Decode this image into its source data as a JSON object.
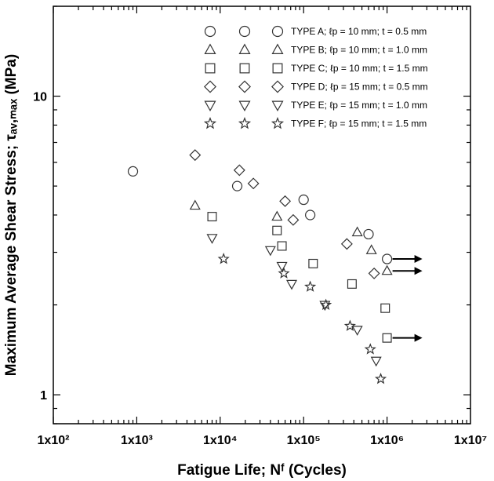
{
  "chart_data": {
    "type": "scatter",
    "x_scale": "log",
    "y_scale": "log",
    "xlim": [
      100,
      10000000
    ],
    "ylim": [
      0.8,
      20
    ],
    "x_ticks": [
      "1x10²",
      "1x10³",
      "1x10⁴",
      "1x10⁵",
      "1x10⁶",
      "1x10⁷"
    ],
    "y_ticks": [
      "1",
      "10"
    ],
    "xlabel": "Fatigue Life; Nᶠ (Cycles)",
    "ylabel": "Maximum Average Shear Stress; τₐᵥ,ₘₐₓ (MPa)",
    "grid": false,
    "legend": {
      "placement": "top-right"
    },
    "series": [
      {
        "name": "TYPE A; ℓp = 10 mm; t = 0.5 mm",
        "marker": "circle",
        "points": [
          [
            900,
            5.6
          ],
          [
            16000,
            5.0
          ],
          [
            100000,
            4.5
          ],
          [
            120000,
            4.0
          ],
          [
            600000,
            3.45
          ],
          [
            1000000,
            2.85
          ]
        ],
        "runout": [
          1000000
        ]
      },
      {
        "name": "TYPE B; ℓp = 10 mm; t = 1.0 mm",
        "marker": "triangle",
        "points": [
          [
            5000,
            4.3
          ],
          [
            48000,
            3.95
          ],
          [
            440000,
            3.5
          ],
          [
            650000,
            3.05
          ],
          [
            1000000,
            2.6
          ]
        ],
        "runout": [
          1000000
        ]
      },
      {
        "name": "TYPE C; ℓp = 10 mm; t = 1.5 mm",
        "marker": "square",
        "points": [
          [
            8000,
            3.95
          ],
          [
            48000,
            3.55
          ],
          [
            55000,
            3.15
          ],
          [
            130000,
            2.75
          ],
          [
            380000,
            2.35
          ],
          [
            950000,
            1.95
          ],
          [
            1000000,
            1.55
          ]
        ],
        "runout": [
          1000000
        ]
      },
      {
        "name": "TYPE D; ℓp = 15 mm; t = 0.5 mm",
        "marker": "diamond",
        "points": [
          [
            5000,
            6.35
          ],
          [
            17000,
            5.65
          ],
          [
            25000,
            5.1
          ],
          [
            60000,
            4.45
          ],
          [
            75000,
            3.85
          ],
          [
            330000,
            3.2
          ],
          [
            700000,
            2.55
          ]
        ],
        "runout": []
      },
      {
        "name": "TYPE E; ℓp = 15 mm; t = 1.0 mm",
        "marker": "down-triangle",
        "points": [
          [
            8000,
            3.35
          ],
          [
            40000,
            3.05
          ],
          [
            55000,
            2.7
          ],
          [
            72000,
            2.35
          ],
          [
            180000,
            2.0
          ],
          [
            440000,
            1.65
          ],
          [
            740000,
            1.3
          ]
        ],
        "runout": []
      },
      {
        "name": "TYPE F; ℓp = 15 mm; t = 1.5 mm",
        "marker": "star",
        "points": [
          [
            11000,
            2.85
          ],
          [
            58000,
            2.55
          ],
          [
            120000,
            2.3
          ],
          [
            185000,
            2.0
          ],
          [
            360000,
            1.7
          ],
          [
            630000,
            1.42
          ],
          [
            840000,
            1.13
          ]
        ],
        "runout": []
      }
    ]
  }
}
